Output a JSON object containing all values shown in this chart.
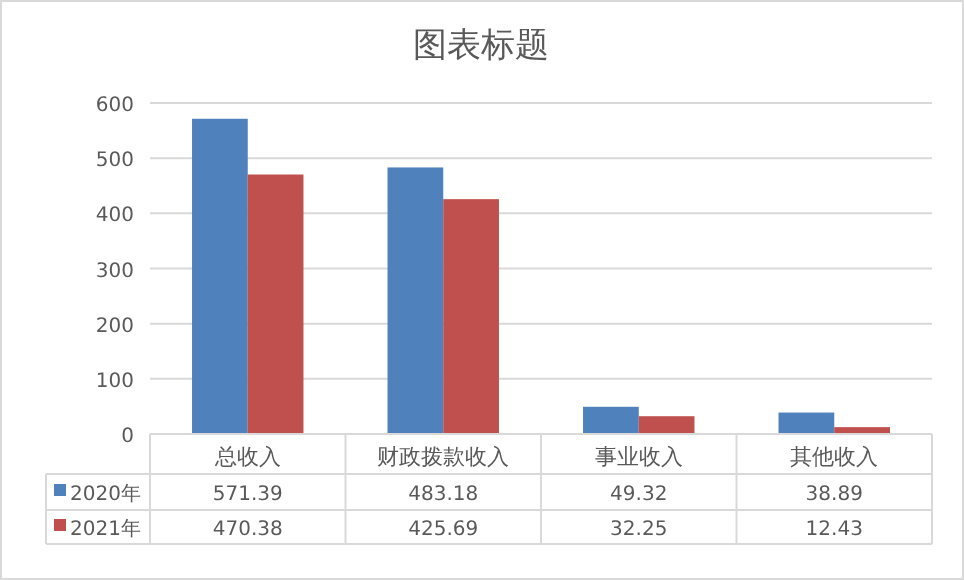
{
  "chart_data": {
    "type": "bar",
    "title": "图表标题",
    "categories": [
      "总收入",
      "财政拨款收入",
      "事业收入",
      "其他收入"
    ],
    "series": [
      {
        "name": "2020年",
        "color": "#4f81bd",
        "values": [
          571.39,
          483.18,
          49.32,
          38.89
        ]
      },
      {
        "name": "2021年",
        "color": "#c0504d",
        "values": [
          470.38,
          425.69,
          32.25,
          12.43
        ]
      }
    ],
    "ylim": [
      0,
      600
    ],
    "yticks": [
      0,
      100,
      200,
      300,
      400,
      500,
      600
    ],
    "grid": "y",
    "data_labels": true,
    "legend": "bottom left"
  }
}
